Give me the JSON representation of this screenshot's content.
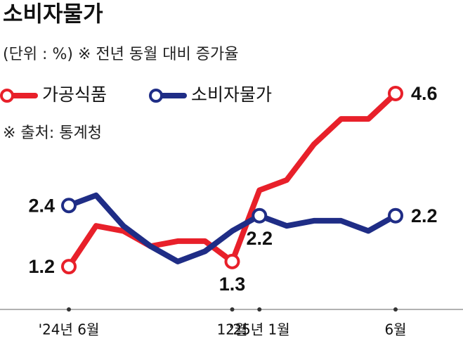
{
  "chart_data": {
    "type": "line",
    "title": "소비자물가",
    "subtitle": "(단위 : %)  ※ 전년 동월 대비 증가율",
    "source": "※ 출처: 통계청",
    "categories": [
      "'24년 6월",
      null,
      null,
      null,
      null,
      null,
      "12월",
      "'25년 1월",
      null,
      null,
      null,
      null,
      "6월"
    ],
    "ylim": [
      0.4,
      5
    ],
    "series": [
      {
        "name": "가공식품",
        "color": "#e8202a",
        "values": [
          1.2,
          2.0,
          1.9,
          1.6,
          1.7,
          1.7,
          1.3,
          2.7,
          2.9,
          3.6,
          4.1,
          4.1,
          4.6
        ],
        "labeled": [
          0,
          6,
          12
        ]
      },
      {
        "name": "소비자물가",
        "color": "#1f2d86",
        "values": [
          2.4,
          2.6,
          2.0,
          1.6,
          1.3,
          1.5,
          1.9,
          2.2,
          2.0,
          2.1,
          2.1,
          1.9,
          2.2
        ],
        "labeled": [
          0,
          7,
          12
        ]
      }
    ]
  }
}
